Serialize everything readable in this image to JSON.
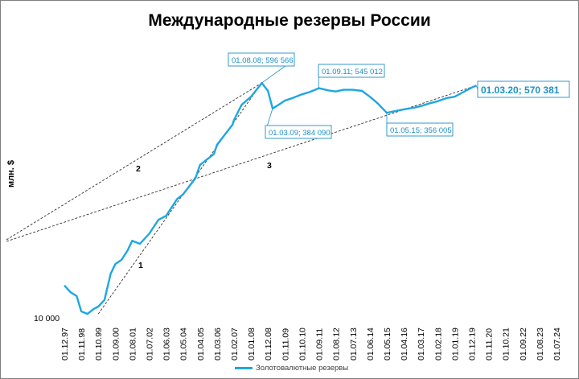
{
  "chart_data": {
    "type": "line",
    "title": "Международные резервы России",
    "ylabel": "млн. $",
    "yscale": "log",
    "y_tick_labels": [
      "10 000"
    ],
    "x_tick_labels": [
      "01.12.97",
      "01.11.98",
      "01.10.99",
      "01.09.00",
      "01.08.01",
      "01.07.02",
      "01.06.03",
      "01.05.04",
      "01.04.05",
      "01.03.06",
      "01.02.07",
      "01.01.08",
      "01.12.08",
      "01.11.09",
      "01.10.10",
      "01.09.11",
      "01.08.12",
      "01.07.13",
      "01.06.14",
      "01.05.15",
      "01.04.16",
      "01.03.17",
      "01.02.18",
      "01.01.19",
      "01.12.19",
      "01.11.20",
      "01.10.21",
      "01.09.22",
      "01.08.23",
      "01.07.24"
    ],
    "series": [
      {
        "name": "Золотовалютные резервы",
        "color": "#1ea7e1",
        "x": [
          "01.12.97",
          "01.04.98",
          "01.08.98",
          "01.11.98",
          "01.03.99",
          "01.07.99",
          "01.10.99",
          "01.02.00",
          "01.06.00",
          "01.09.00",
          "01.01.01",
          "01.05.01",
          "01.08.01",
          "01.01.02",
          "01.07.02",
          "01.01.03",
          "01.06.03",
          "01.01.04",
          "01.05.04",
          "01.01.05",
          "01.04.05",
          "01.01.06",
          "01.03.06",
          "01.01.07",
          "01.02.07",
          "01.07.07",
          "01.01.08",
          "01.08.08",
          "01.12.08",
          "01.03.09",
          "01.07.09",
          "01.11.09",
          "01.04.10",
          "01.10.10",
          "01.03.11",
          "01.09.11",
          "01.03.12",
          "01.08.12",
          "01.01.13",
          "01.07.13",
          "01.01.14",
          "01.06.14",
          "01.11.14",
          "01.05.15",
          "01.11.15",
          "01.04.16",
          "01.11.16",
          "01.03.17",
          "01.09.17",
          "01.02.18",
          "01.08.18",
          "01.01.19",
          "01.08.19",
          "01.12.19",
          "01.03.20"
        ],
        "y": [
          18000,
          16000,
          15000,
          11500,
          11000,
          12000,
          12500,
          14000,
          22000,
          26000,
          28000,
          33000,
          39000,
          37000,
          44000,
          56000,
          60000,
          80000,
          87000,
          115000,
          145000,
          175000,
          205000,
          290000,
          315000,
          410000,
          470000,
          596566,
          520000,
          384090,
          410000,
          440000,
          460000,
          490000,
          510000,
          545012,
          525000,
          515000,
          530000,
          530000,
          520000,
          470000,
          420000,
          356005,
          368000,
          378000,
          390000,
          400000,
          420000,
          435000,
          460000,
          470000,
          520000,
          550000,
          570381
        ]
      }
    ],
    "annotations": [
      {
        "label": "01.08.08; 596 566"
      },
      {
        "label": "01.09.11; 545 012"
      },
      {
        "label": "01.03.09; 384 090"
      },
      {
        "label": "01.05.15; 356 005"
      },
      {
        "label": "01.03.20; 570 381"
      }
    ],
    "trendline_labels": [
      "1",
      "2",
      "3"
    ],
    "legend_position": "bottom"
  }
}
